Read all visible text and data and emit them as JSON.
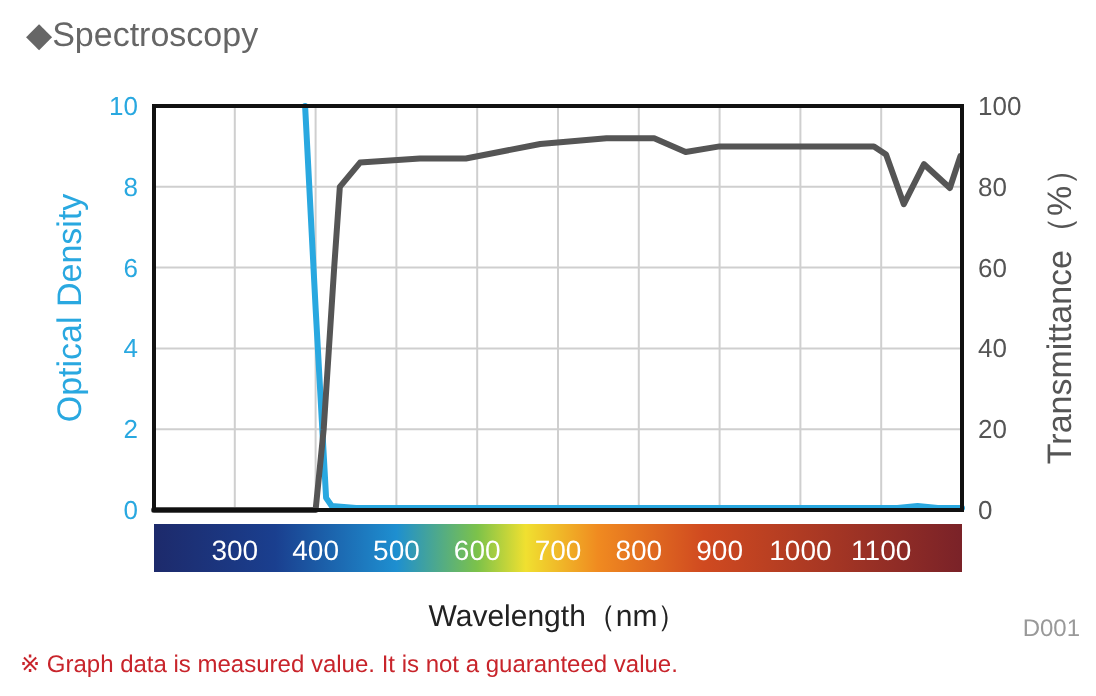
{
  "chart_data": {
    "type": "line",
    "title": "◆Spectroscopy",
    "xlabel": "Wavelength（nm）",
    "ylabel": "Optical Density",
    "y2label": "Transmittance（%）",
    "series": [
      {
        "color": "#29a8e0",
        "x": [
          387,
          400,
          413,
          420,
          450,
          600,
          800,
          1000,
          1120,
          1145,
          1170,
          1200
        ],
        "values": [
          10,
          5,
          0.3,
          0.1,
          0.05,
          0.05,
          0.05,
          0.05,
          0.05,
          0.1,
          0.05,
          0.05
        ]
      },
      {
        "axis": "y2",
        "color": "#555555",
        "x": [
          200,
          300,
          400,
          410,
          423,
          430,
          455,
          529,
          586,
          678,
          760,
          819,
          858,
          900,
          967,
          1091,
          1106,
          1128,
          1153,
          1185,
          1198
        ],
        "values": [
          0,
          0,
          0,
          20,
          60,
          80,
          86,
          87,
          87,
          90.6,
          92,
          92,
          88.6,
          90,
          90,
          90,
          88,
          75.7,
          85.6,
          79.7,
          87.6
        ]
      }
    ],
    "xlim": [
      200,
      1200
    ],
    "xticks": [
      300,
      400,
      500,
      600,
      700,
      800,
      900,
      1000,
      1100
    ],
    "ylim": [
      0,
      10
    ],
    "yticks": [
      0,
      2,
      4,
      6,
      8,
      10
    ],
    "y2lim": [
      0,
      100
    ],
    "y2ticks": [
      0,
      20,
      40,
      60,
      80,
      100
    ],
    "grid": true,
    "marker": "none",
    "line_style": "solid",
    "annotations": [
      "D001",
      "※ Graph data is measured value. It is not a guaranteed value."
    ]
  }
}
